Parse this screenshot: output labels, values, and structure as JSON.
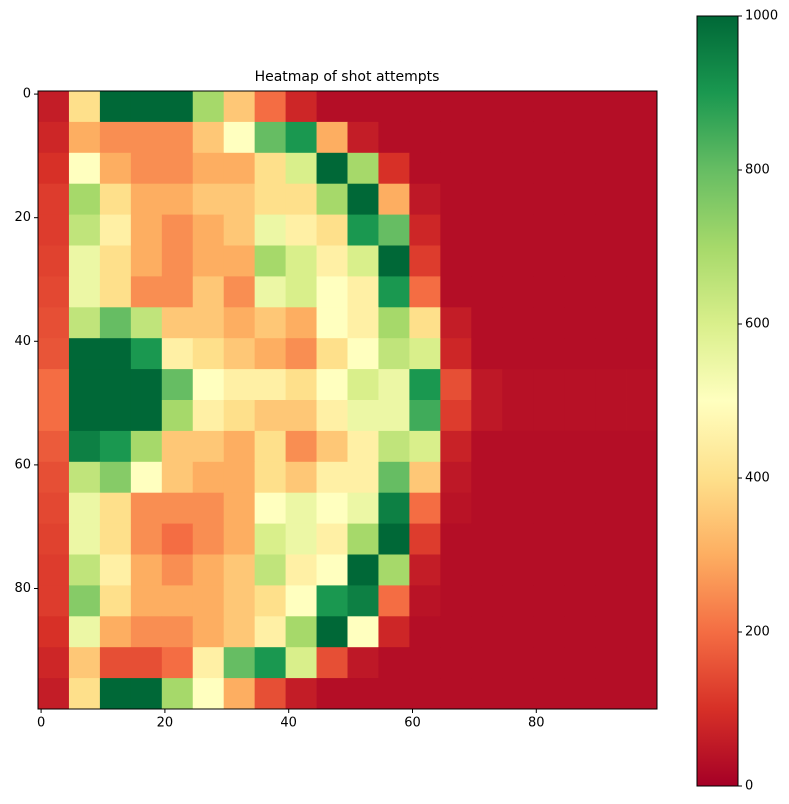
{
  "chart_data": {
    "type": "heatmap",
    "title": "Heatmap of shot attempts",
    "xbins": [
      -0.5,
      4.5,
      9.5,
      14.5,
      19.5,
      24.5,
      29.5,
      34.5,
      39.5,
      44.5,
      49.5,
      54.5,
      59.5,
      64.5,
      69.5,
      74.5,
      79.5,
      84.5,
      89.5,
      94.5,
      99.5
    ],
    "ybins": [
      -0.5,
      4.5,
      9.5,
      14.5,
      19.5,
      24.5,
      29.5,
      34.5,
      39.5,
      44.5,
      49.5,
      54.5,
      59.5,
      64.5,
      69.5,
      74.5,
      79.5,
      84.5,
      89.5,
      94.5,
      99.5
    ],
    "xlim": [
      -0.5,
      99.5
    ],
    "ylim": [
      99.5,
      -0.5
    ],
    "xticks": [
      0,
      20,
      40,
      60,
      80
    ],
    "yticks": [
      0,
      20,
      40,
      60,
      80
    ],
    "clim": [
      0,
      1000
    ],
    "cticks": [
      0,
      200,
      400,
      600,
      800,
      1000
    ],
    "colormap": [
      "#a50026",
      "#d73027",
      "#f46d43",
      "#fdae61",
      "#fee08b",
      "#ffffbf",
      "#d9ef8b",
      "#a6d96a",
      "#66bd63",
      "#1a9850",
      "#006837"
    ],
    "z": [
      [
        60,
        400,
        1000,
        1000,
        1000,
        700,
        350,
        200,
        80,
        30,
        30,
        30,
        30,
        30,
        30,
        30,
        30,
        30,
        30,
        30
      ],
      [
        80,
        300,
        250,
        250,
        250,
        350,
        500,
        800,
        900,
        300,
        60,
        30,
        30,
        30,
        30,
        30,
        30,
        30,
        30,
        30
      ],
      [
        100,
        500,
        300,
        250,
        250,
        300,
        300,
        400,
        600,
        1000,
        700,
        100,
        30,
        30,
        30,
        30,
        30,
        30,
        30,
        30
      ],
      [
        120,
        700,
        400,
        300,
        300,
        350,
        350,
        400,
        400,
        700,
        1000,
        300,
        50,
        30,
        30,
        30,
        30,
        30,
        30,
        30
      ],
      [
        120,
        650,
        450,
        300,
        250,
        300,
        350,
        550,
        450,
        400,
        900,
        800,
        80,
        30,
        30,
        30,
        30,
        30,
        30,
        30
      ],
      [
        130,
        550,
        400,
        300,
        250,
        300,
        300,
        700,
        600,
        450,
        600,
        1000,
        120,
        30,
        30,
        30,
        30,
        30,
        30,
        30
      ],
      [
        140,
        550,
        400,
        250,
        250,
        350,
        250,
        550,
        600,
        500,
        450,
        900,
        200,
        30,
        30,
        30,
        30,
        30,
        30,
        30
      ],
      [
        150,
        650,
        800,
        650,
        350,
        350,
        300,
        350,
        300,
        500,
        450,
        700,
        400,
        60,
        30,
        30,
        30,
        30,
        30,
        30
      ],
      [
        160,
        1000,
        1000,
        900,
        450,
        400,
        350,
        300,
        250,
        400,
        500,
        650,
        600,
        80,
        30,
        30,
        30,
        30,
        30,
        30
      ],
      [
        200,
        1000,
        1000,
        1000,
        800,
        500,
        450,
        450,
        400,
        500,
        600,
        550,
        900,
        150,
        50,
        35,
        35,
        35,
        35,
        35
      ],
      [
        200,
        1000,
        1000,
        1000,
        700,
        450,
        400,
        350,
        350,
        450,
        550,
        550,
        850,
        120,
        50,
        35,
        35,
        35,
        35,
        35
      ],
      [
        170,
        950,
        900,
        700,
        350,
        350,
        300,
        400,
        250,
        350,
        450,
        650,
        600,
        70,
        30,
        30,
        30,
        30,
        30,
        30
      ],
      [
        150,
        650,
        750,
        500,
        350,
        300,
        300,
        400,
        350,
        450,
        450,
        800,
        350,
        50,
        30,
        30,
        30,
        30,
        30,
        30
      ],
      [
        140,
        550,
        400,
        250,
        250,
        250,
        300,
        500,
        550,
        500,
        550,
        950,
        200,
        40,
        30,
        30,
        30,
        30,
        30,
        30
      ],
      [
        130,
        550,
        400,
        250,
        200,
        250,
        300,
        600,
        550,
        450,
        700,
        1000,
        120,
        30,
        30,
        30,
        30,
        30,
        30,
        30
      ],
      [
        120,
        650,
        450,
        300,
        250,
        300,
        350,
        650,
        450,
        500,
        1000,
        700,
        60,
        30,
        30,
        30,
        30,
        30,
        30,
        30
      ],
      [
        120,
        750,
        400,
        300,
        300,
        300,
        350,
        400,
        500,
        900,
        950,
        200,
        40,
        30,
        30,
        30,
        30,
        30,
        30,
        30
      ],
      [
        100,
        550,
        300,
        250,
        250,
        300,
        350,
        450,
        700,
        1000,
        500,
        80,
        30,
        30,
        30,
        30,
        30,
        30,
        30,
        30
      ],
      [
        80,
        350,
        150,
        150,
        200,
        450,
        800,
        900,
        600,
        150,
        50,
        30,
        30,
        30,
        30,
        30,
        30,
        30,
        30,
        30
      ],
      [
        60,
        400,
        1000,
        1000,
        700,
        500,
        300,
        150,
        60,
        30,
        30,
        30,
        30,
        30,
        30,
        30,
        30,
        30,
        30,
        30
      ]
    ]
  }
}
